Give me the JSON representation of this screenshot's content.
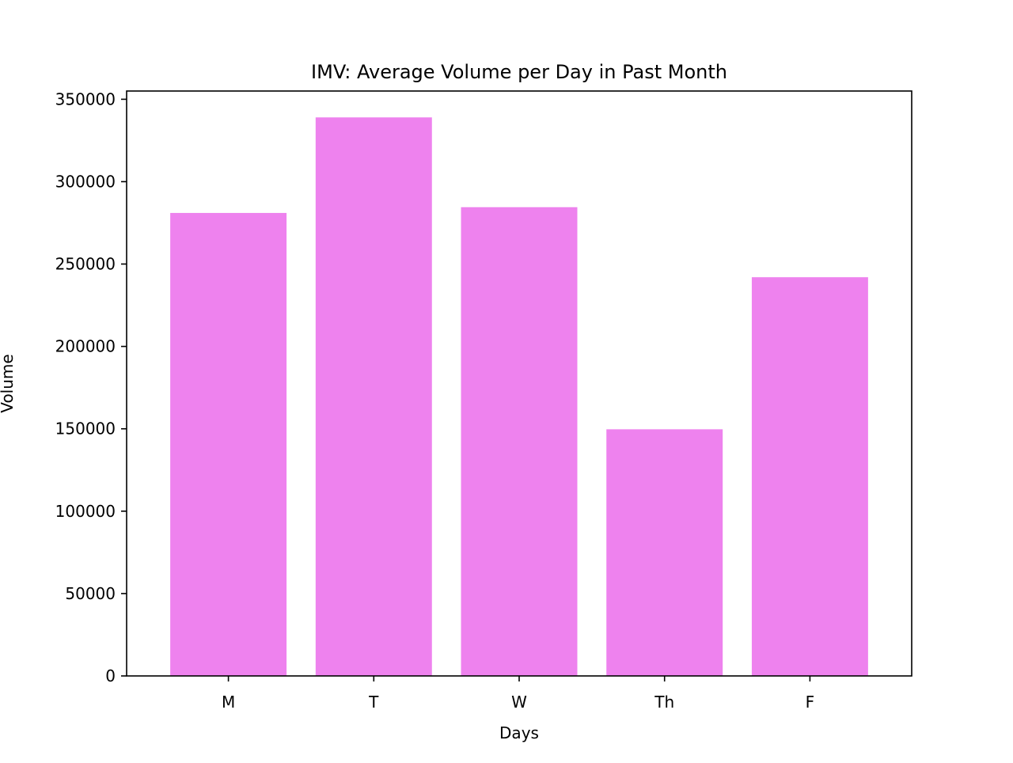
{
  "chart_data": {
    "type": "bar",
    "title": "IMV: Average Volume per Day in Past Month",
    "xlabel": "Days",
    "ylabel": "Volume",
    "categories": [
      "M",
      "T",
      "W",
      "Th",
      "F"
    ],
    "values": [
      281000,
      339000,
      284500,
      149700,
      242000
    ],
    "ylim": [
      0,
      355000
    ],
    "yticks": [
      0,
      50000,
      100000,
      150000,
      200000,
      250000,
      300000,
      350000
    ],
    "bar_color": "#ee82ee",
    "grid": false,
    "legend": "none"
  }
}
